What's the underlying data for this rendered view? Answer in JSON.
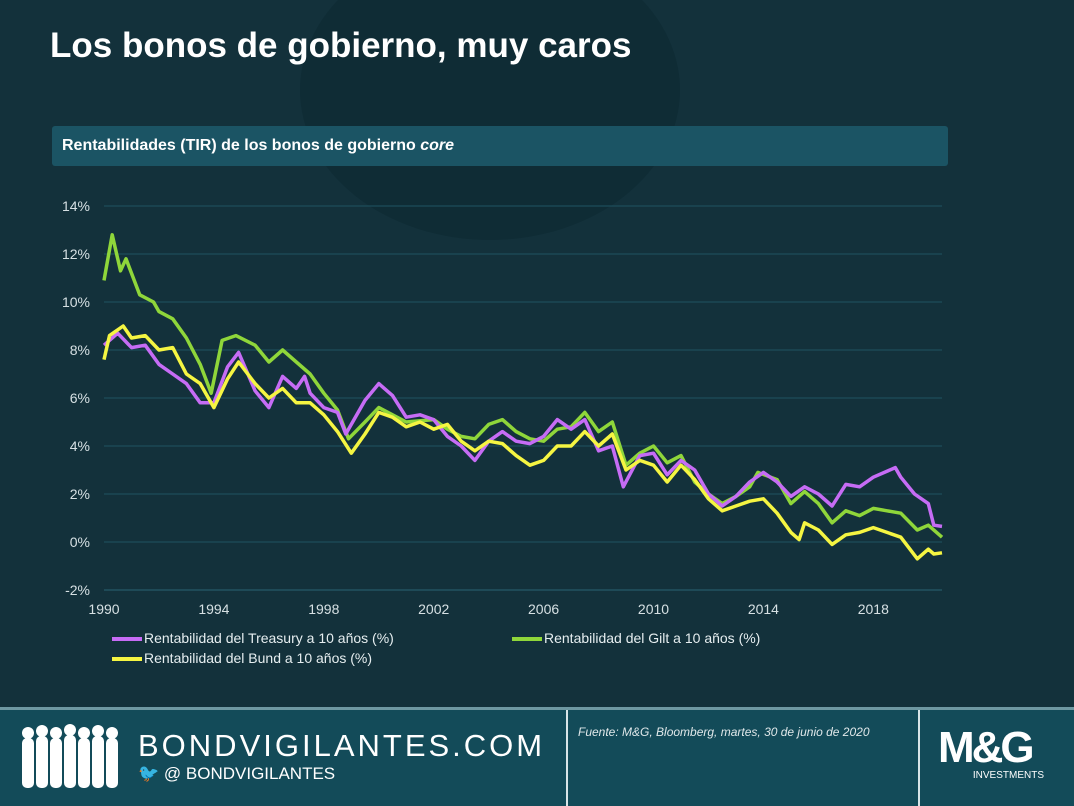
{
  "title": "Los bonos de gobierno, muy caros",
  "subtitle": {
    "text": "Rentabilidades  (TIR) de los bonos de gobierno ",
    "italic": "core"
  },
  "chart_data": {
    "type": "line",
    "xlabel": "",
    "ylabel": "",
    "xlim": [
      1990,
      2020.5
    ],
    "ylim": [
      -2,
      14
    ],
    "x_ticks": [
      "1990",
      "1994",
      "1998",
      "2002",
      "2006",
      "2010",
      "2014",
      "2018"
    ],
    "y_ticks": [
      "-2%",
      "0%",
      "2%",
      "4%",
      "6%",
      "8%",
      "10%",
      "12%",
      "14%"
    ],
    "grid": "horizontal",
    "legend_placement": "bottom",
    "series": [
      {
        "name": "Rentabilidad del Treasury a 10 años (%)",
        "color": "#c66cf5",
        "x": [
          1990,
          1990.5,
          1991,
          1991.5,
          1992,
          1992.5,
          1993,
          1993.5,
          1994,
          1994.5,
          1994.9,
          1995.5,
          1996,
          1996.5,
          1997,
          1997.3,
          1997.5,
          1998,
          1998.5,
          1998.8,
          1999,
          1999.5,
          2000,
          2000.5,
          2001,
          2001.5,
          2002,
          2002.5,
          2003,
          2003.5,
          2004,
          2004.5,
          2005,
          2005.5,
          2006,
          2006.5,
          2007,
          2007.5,
          2008,
          2008.5,
          2008.9,
          2009.5,
          2010,
          2010.5,
          2011,
          2011.5,
          2012,
          2012.5,
          2013,
          2013.5,
          2014,
          2014.5,
          2015,
          2015.5,
          2016,
          2016.5,
          2017,
          2017.5,
          2018,
          2018.8,
          2019,
          2019.5,
          2020,
          2020.2,
          2020.5
        ],
        "y": [
          8.2,
          8.7,
          8.1,
          8.2,
          7.4,
          7.0,
          6.6,
          5.8,
          5.8,
          7.3,
          7.9,
          6.3,
          5.6,
          6.9,
          6.4,
          6.9,
          6.2,
          5.6,
          5.4,
          4.5,
          4.9,
          5.9,
          6.6,
          6.1,
          5.2,
          5.3,
          5.1,
          4.4,
          4.0,
          3.4,
          4.2,
          4.6,
          4.2,
          4.1,
          4.4,
          5.1,
          4.7,
          5.1,
          3.8,
          4.0,
          2.3,
          3.6,
          3.7,
          2.8,
          3.4,
          3.0,
          2.0,
          1.5,
          1.9,
          2.5,
          2.9,
          2.5,
          1.9,
          2.3,
          2.0,
          1.5,
          2.4,
          2.3,
          2.7,
          3.1,
          2.7,
          2.0,
          1.6,
          0.7,
          0.65
        ]
      },
      {
        "name": "Rentabilidad del Gilt a 10 años (%)",
        "color": "#8fd63a",
        "x": [
          1990,
          1990.3,
          1990.6,
          1990.8,
          1991.3,
          1991.8,
          1992,
          1992.5,
          1993,
          1993.5,
          1993.9,
          1994.3,
          1994.8,
          1995.5,
          1996,
          1996.5,
          1997,
          1997.5,
          1998,
          1998.5,
          1998.9,
          1999.5,
          2000,
          2000.5,
          2001,
          2002,
          2002.5,
          2003,
          2003.5,
          2004,
          2004.5,
          2005,
          2005.5,
          2006,
          2006.5,
          2007,
          2007.5,
          2008,
          2008.5,
          2009,
          2009.5,
          2010,
          2010.5,
          2011,
          2011.5,
          2012,
          2012.5,
          2013,
          2013.5,
          2013.8,
          2014.5,
          2015,
          2015.5,
          2016,
          2016.5,
          2017,
          2017.5,
          2018,
          2018.5,
          2019,
          2019.6,
          2020,
          2020.5
        ],
        "y": [
          10.9,
          12.8,
          11.3,
          11.8,
          10.3,
          10.0,
          9.6,
          9.3,
          8.5,
          7.4,
          6.2,
          8.4,
          8.6,
          8.2,
          7.5,
          8.0,
          7.5,
          7.0,
          6.2,
          5.5,
          4.3,
          5.0,
          5.6,
          5.3,
          5.0,
          5.1,
          4.7,
          4.4,
          4.3,
          4.9,
          5.1,
          4.6,
          4.3,
          4.2,
          4.7,
          4.8,
          5.4,
          4.6,
          5.0,
          3.2,
          3.7,
          4.0,
          3.3,
          3.6,
          2.5,
          2.0,
          1.6,
          1.9,
          2.3,
          2.9,
          2.6,
          1.6,
          2.1,
          1.6,
          0.8,
          1.3,
          1.1,
          1.4,
          1.3,
          1.2,
          0.5,
          0.7,
          0.2
        ]
      },
      {
        "name": "Rentabilidad del Bund a 10 años (%)",
        "color": "#f5f542",
        "x": [
          1990,
          1990.2,
          1990.7,
          1991,
          1991.5,
          1992,
          1992.5,
          1993,
          1993.5,
          1994,
          1994.5,
          1994.9,
          1995.5,
          1996,
          1996.5,
          1997,
          1997.5,
          1998,
          1998.5,
          1999,
          1999.5,
          2000,
          2000.5,
          2001,
          2001.5,
          2002,
          2002.5,
          2003,
          2003.5,
          2004,
          2004.5,
          2005,
          2005.5,
          2006,
          2006.5,
          2007,
          2007.5,
          2008,
          2008.5,
          2009,
          2009.5,
          2010,
          2010.5,
          2011,
          2011.5,
          2012,
          2012.5,
          2013,
          2013.5,
          2014,
          2014.5,
          2015,
          2015.3,
          2015.5,
          2016,
          2016.5,
          2017,
          2017.5,
          2018,
          2018.5,
          2019,
          2019.6,
          2020,
          2020.2,
          2020.5
        ],
        "y": [
          7.6,
          8.6,
          9.0,
          8.5,
          8.6,
          8.0,
          8.1,
          7.0,
          6.6,
          5.6,
          6.8,
          7.5,
          6.6,
          6.0,
          6.4,
          5.8,
          5.8,
          5.3,
          4.6,
          3.7,
          4.5,
          5.4,
          5.2,
          4.8,
          5.0,
          4.7,
          4.9,
          4.2,
          3.8,
          4.2,
          4.1,
          3.6,
          3.2,
          3.4,
          4.0,
          4.0,
          4.6,
          4.0,
          4.5,
          3.0,
          3.4,
          3.2,
          2.5,
          3.2,
          2.6,
          1.8,
          1.3,
          1.5,
          1.7,
          1.8,
          1.2,
          0.4,
          0.1,
          0.8,
          0.5,
          -0.1,
          0.3,
          0.4,
          0.6,
          0.4,
          0.2,
          -0.7,
          -0.3,
          -0.5,
          -0.45
        ]
      }
    ]
  },
  "footer": {
    "site": "BONDVIGILANTES.COM",
    "handle": "@ BONDVIGILANTES",
    "source": "Fuente: M&G, Bloomberg, martes, 30 de junio de 2020",
    "logo_text": "M&G",
    "logo_sub": "INVESTMENTS"
  }
}
